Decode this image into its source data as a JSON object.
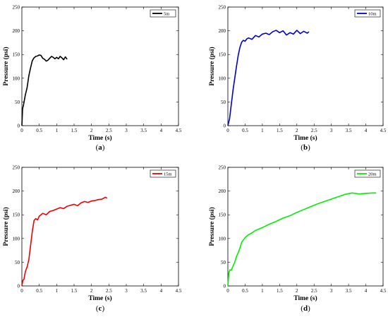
{
  "figure": {
    "panels": [
      {
        "caption_letter": "a",
        "legend": "5m",
        "color": "#000000",
        "xlabel": "Time (s)",
        "ylabel": "Pressure (psi)",
        "xticks": [
          "0",
          "0.5",
          "1",
          "1.5",
          "2",
          "2.5",
          "3",
          "3.5",
          "4",
          "4.5"
        ],
        "yticks": [
          "0",
          "50",
          "100",
          "150",
          "200",
          "250"
        ]
      },
      {
        "caption_letter": "b",
        "legend": "10m",
        "color": "#0000cc",
        "xlabel": "Time (s)",
        "ylabel": "Pressure (psi)",
        "xticks": [
          "0",
          "0.5",
          "1",
          "1.5",
          "2",
          "2.5",
          "3",
          "3.5",
          "4",
          "4.5"
        ],
        "yticks": [
          "0",
          "50",
          "100",
          "150",
          "200",
          "250"
        ]
      },
      {
        "caption_letter": "c",
        "legend": "15m",
        "color": "#ee0000",
        "xlabel": "Time (s)",
        "ylabel": "Pressure (psi)",
        "xticks": [
          "0",
          "0.5",
          "1",
          "1.5",
          "2",
          "2.5",
          "3",
          "3.5",
          "4",
          "4.5"
        ],
        "yticks": [
          "0",
          "50",
          "100",
          "150",
          "200",
          "250"
        ]
      },
      {
        "caption_letter": "d",
        "legend": "20m",
        "color": "#00ee00",
        "xlabel": "Time (s)",
        "ylabel": "Pressure (psi)",
        "xticks": [
          "0",
          "0.5",
          "1",
          "1.5",
          "2",
          "2.5",
          "3",
          "3.5",
          "4",
          "4.5"
        ],
        "yticks": [
          "0",
          "50",
          "100",
          "150",
          "200",
          "250"
        ]
      }
    ]
  },
  "chart_data": [
    {
      "type": "line",
      "title": "",
      "xlabel": "Time (s)",
      "ylabel": "Pressure (psi)",
      "xlim": [
        0,
        4.5
      ],
      "ylim": [
        0,
        250
      ],
      "legend_position": "top-right",
      "grid": false,
      "series": [
        {
          "name": "5m",
          "color": "#000000",
          "x": [
            0,
            0.02,
            0.05,
            0.1,
            0.15,
            0.2,
            0.25,
            0.3,
            0.35,
            0.4,
            0.45,
            0.5,
            0.55,
            0.6,
            0.65,
            0.7,
            0.75,
            0.8,
            0.85,
            0.9,
            0.95,
            1.0,
            1.05,
            1.1,
            1.15,
            1.2,
            1.25,
            1.3
          ],
          "y": [
            0,
            35,
            45,
            65,
            80,
            105,
            122,
            137,
            143,
            146,
            147,
            149,
            148,
            142,
            140,
            136,
            138,
            142,
            146,
            144,
            141,
            144,
            141,
            146,
            143,
            139,
            145,
            140
          ]
        }
      ]
    },
    {
      "type": "line",
      "title": "",
      "xlabel": "Time (s)",
      "ylabel": "Pressure (psi)",
      "xlim": [
        0,
        4.5
      ],
      "ylim": [
        0,
        250
      ],
      "legend_position": "top-right",
      "grid": false,
      "series": [
        {
          "name": "10m",
          "color": "#0000cc",
          "x": [
            0,
            0.05,
            0.1,
            0.15,
            0.2,
            0.25,
            0.3,
            0.35,
            0.4,
            0.45,
            0.5,
            0.55,
            0.6,
            0.7,
            0.8,
            0.9,
            1.0,
            1.1,
            1.2,
            1.3,
            1.4,
            1.5,
            1.6,
            1.7,
            1.8,
            1.9,
            2.0,
            2.1,
            2.2,
            2.3,
            2.35
          ],
          "y": [
            0,
            15,
            45,
            75,
            100,
            125,
            148,
            165,
            176,
            180,
            178,
            183,
            185,
            182,
            190,
            187,
            193,
            195,
            192,
            198,
            201,
            196,
            200,
            191,
            196,
            193,
            201,
            194,
            199,
            195,
            198
          ]
        }
      ]
    },
    {
      "type": "line",
      "title": "",
      "xlabel": "Time (s)",
      "ylabel": "Pressure (psi)",
      "xlim": [
        0,
        4.5
      ],
      "ylim": [
        0,
        250
      ],
      "legend_position": "top-right",
      "grid": false,
      "series": [
        {
          "name": "15m",
          "color": "#ee0000",
          "x": [
            0,
            0.03,
            0.06,
            0.1,
            0.15,
            0.2,
            0.25,
            0.3,
            0.35,
            0.4,
            0.45,
            0.5,
            0.6,
            0.7,
            0.8,
            0.9,
            1.0,
            1.1,
            1.2,
            1.3,
            1.4,
            1.5,
            1.6,
            1.7,
            1.8,
            1.9,
            2.0,
            2.1,
            2.2,
            2.3,
            2.4,
            2.45
          ],
          "y": [
            0,
            12,
            14,
            30,
            40,
            55,
            85,
            115,
            138,
            142,
            139,
            147,
            153,
            150,
            157,
            159,
            162,
            165,
            163,
            168,
            170,
            172,
            169,
            175,
            178,
            176,
            179,
            180,
            182,
            183,
            187,
            185
          ]
        }
      ]
    },
    {
      "type": "line",
      "title": "",
      "xlabel": "Time (s)",
      "ylabel": "Pressure (psi)",
      "xlim": [
        0,
        4.5
      ],
      "ylim": [
        0,
        250
      ],
      "legend_position": "top-right",
      "grid": false,
      "series": [
        {
          "name": "20m",
          "color": "#00ee00",
          "x": [
            0,
            0.03,
            0.06,
            0.1,
            0.15,
            0.2,
            0.25,
            0.3,
            0.35,
            0.4,
            0.5,
            0.6,
            0.7,
            0.8,
            0.9,
            1.0,
            1.2,
            1.4,
            1.6,
            1.8,
            2.0,
            2.2,
            2.4,
            2.6,
            2.8,
            3.0,
            3.2,
            3.4,
            3.6,
            3.8,
            4.0,
            4.2,
            4.3
          ],
          "y": [
            0,
            28,
            34,
            33,
            42,
            50,
            62,
            70,
            80,
            92,
            102,
            108,
            112,
            117,
            120,
            123,
            130,
            136,
            143,
            148,
            155,
            161,
            167,
            173,
            178,
            183,
            188,
            193,
            196,
            194,
            195,
            196,
            196
          ]
        }
      ]
    }
  ]
}
